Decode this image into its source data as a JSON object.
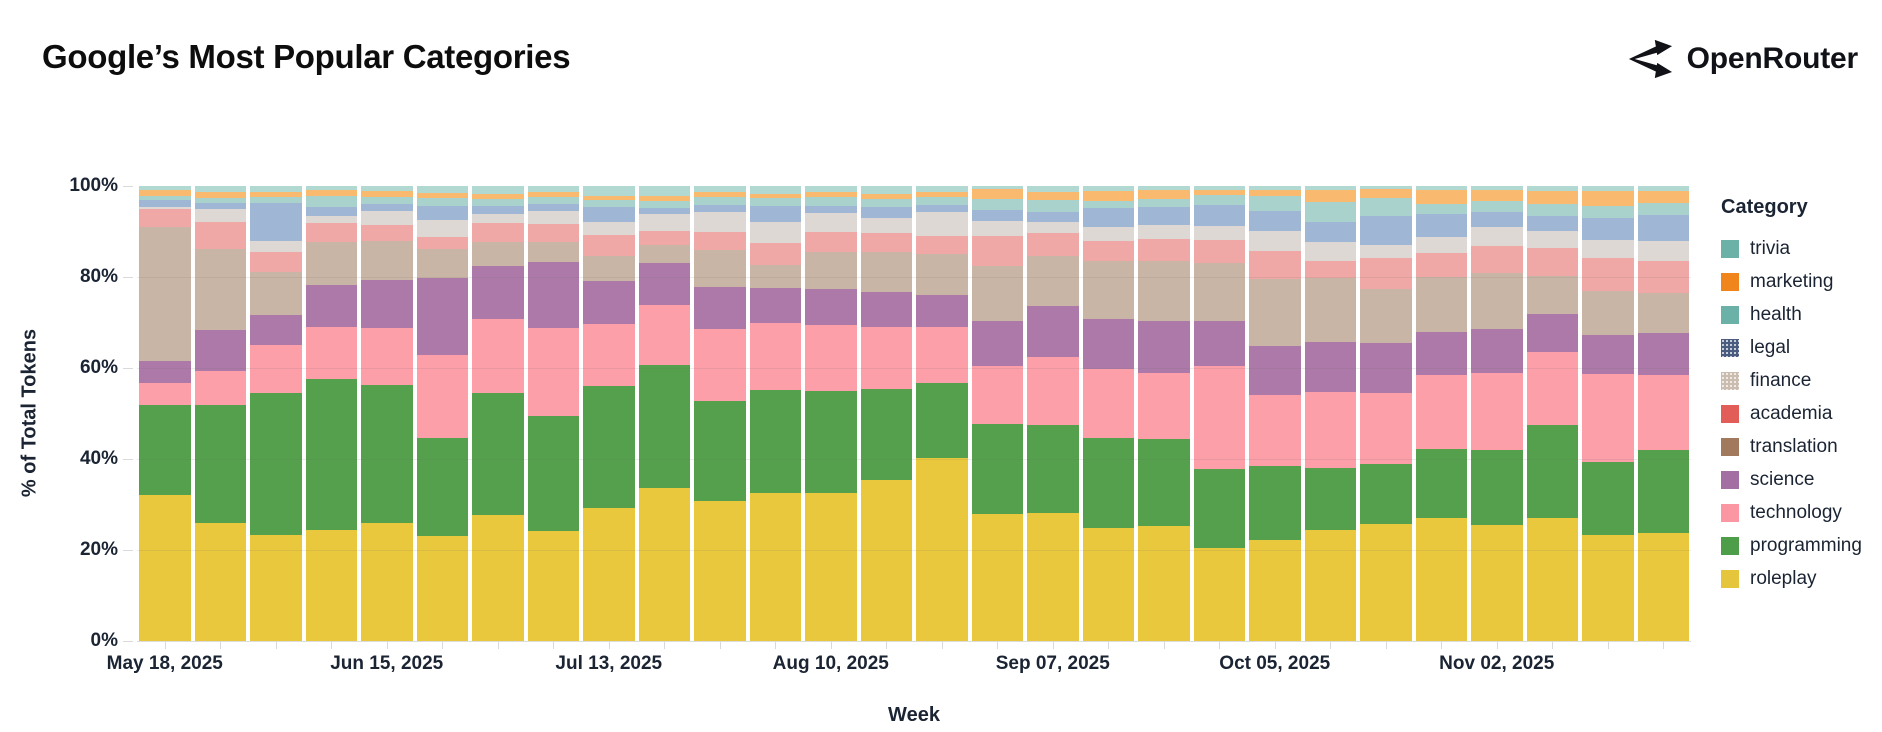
{
  "header": {
    "title": "Google’s Most Popular Categories",
    "logo_text": "OpenRouter"
  },
  "chart": {
    "y_axis": {
      "title": "% of Total Tokens",
      "tick_labels": [
        "0%",
        "20%",
        "40%",
        "60%",
        "80%",
        "100%"
      ]
    },
    "x_axis": {
      "title": "Week",
      "tick_labels": [
        "May 18, 2025",
        "Jun 15, 2025",
        "Jul 13, 2025",
        "Aug 10, 2025",
        "Sep 07, 2025",
        "Oct 05, 2025",
        "Nov 02, 2025"
      ],
      "tick_week_indices": [
        0,
        4,
        8,
        12,
        16,
        20,
        24
      ]
    },
    "legend_title": "Category"
  },
  "colors": {
    "background": "#ffffff",
    "text": "#1b2433",
    "grid": "#d9d9d9"
  },
  "chart_data": {
    "type": "bar",
    "stacked": true,
    "unit": "percent_of_total_tokens",
    "ylim": [
      0,
      100
    ],
    "grid": true,
    "legend_position": "right",
    "title": "Google’s Most Popular Categories",
    "xlabel": "Week",
    "ylabel": "% of Total Tokens",
    "x": [
      "May 18, 2025",
      "May 25, 2025",
      "Jun 01, 2025",
      "Jun 08, 2025",
      "Jun 15, 2025",
      "Jun 22, 2025",
      "Jun 29, 2025",
      "Jul 06, 2025",
      "Jul 13, 2025",
      "Jul 20, 2025",
      "Jul 27, 2025",
      "Aug 03, 2025",
      "Aug 10, 2025",
      "Aug 17, 2025",
      "Aug 24, 2025",
      "Aug 31, 2025",
      "Sep 07, 2025",
      "Sep 14, 2025",
      "Sep 21, 2025",
      "Sep 28, 2025",
      "Oct 05, 2025",
      "Oct 12, 2025",
      "Oct 19, 2025",
      "Oct 26, 2025",
      "Nov 02, 2025",
      "Nov 09, 2025",
      "Nov 16, 2025",
      "Nov 23, 2025"
    ],
    "legend_order_top_to_bottom": [
      "trivia",
      "marketing",
      "health",
      "legal",
      "finance",
      "academia",
      "translation",
      "science",
      "technology",
      "programming",
      "roleplay"
    ],
    "series_bottom_to_top": [
      {
        "name": "roleplay",
        "color": "#e9c83d",
        "legend_color": "#e4c53c",
        "bar_dotted": false,
        "legend_dotted": false,
        "values": [
          32.1,
          25.9,
          23.4,
          24.5,
          26.0,
          23.1,
          27.8,
          24.1,
          29.2,
          33.6,
          30.7,
          32.6,
          32.6,
          35.3,
          40.2,
          28.0,
          28.2,
          24.8,
          25.3,
          20.4,
          22.3,
          24.3,
          25.8,
          27.0,
          25.4,
          27.0,
          23.4,
          23.8
        ]
      },
      {
        "name": "programming",
        "color": "#54a04c",
        "legend_color": "#4d9d49",
        "bar_dotted": false,
        "legend_dotted": false,
        "values": [
          19.8,
          26.0,
          31.0,
          33.1,
          30.3,
          21.5,
          26.8,
          25.3,
          26.8,
          27.1,
          22.0,
          22.5,
          22.3,
          20.0,
          16.6,
          19.6,
          19.3,
          19.8,
          19.0,
          17.3,
          16.1,
          13.7,
          13.0,
          15.3,
          16.5,
          20.4,
          16.0,
          18.1
        ]
      },
      {
        "name": "technology",
        "color": "#fc9fa9",
        "legend_color": "#fb96a3",
        "bar_dotted": false,
        "legend_dotted": false,
        "values": [
          4.9,
          7.5,
          10.6,
          11.4,
          12.5,
          18.3,
          16.1,
          19.3,
          13.7,
          13.2,
          15.8,
          14.7,
          14.5,
          13.7,
          12.2,
          12.9,
          14.9,
          15.1,
          14.7,
          22.7,
          15.7,
          16.8,
          15.8,
          16.1,
          16.9,
          16.1,
          19.2,
          16.6
        ]
      },
      {
        "name": "science",
        "color": "#ad79a9",
        "legend_color": "#a36fa3",
        "bar_dotted": false,
        "legend_dotted": false,
        "values": [
          4.7,
          9.0,
          6.7,
          9.3,
          10.5,
          16.8,
          11.7,
          14.7,
          9.5,
          9.2,
          9.3,
          7.7,
          7.9,
          7.8,
          7.1,
          9.8,
          11.2,
          11.1,
          11.3,
          10.0,
          10.7,
          11.0,
          10.8,
          9.5,
          9.7,
          8.4,
          8.7,
          9.1
        ]
      },
      {
        "name": "translation",
        "color": "#c9b5a5",
        "legend_color": "#a1795d",
        "bar_dotted": false,
        "legend_dotted": false,
        "values": [
          29.4,
          17.8,
          9.5,
          9.4,
          8.6,
          6.4,
          5.4,
          4.2,
          5.5,
          4.0,
          8.1,
          5.1,
          8.1,
          8.8,
          9.0,
          12.2,
          11.1,
          12.8,
          13.2,
          12.7,
          14.7,
          13.9,
          11.9,
          12.2,
          12.3,
          8.4,
          9.7,
          8.8
        ]
      },
      {
        "name": "academia",
        "color": "#efa8a5",
        "legend_color": "#e25c58",
        "bar_dotted": false,
        "legend_dotted": false,
        "values": [
          4.0,
          6.0,
          4.2,
          4.2,
          3.5,
          2.6,
          4.1,
          4.0,
          4.5,
          3.1,
          4.0,
          4.8,
          4.4,
          4.1,
          3.9,
          6.6,
          5.0,
          4.4,
          4.8,
          5.1,
          6.2,
          3.9,
          6.9,
          5.1,
          6.0,
          6.1,
          7.2,
          7.2
        ]
      },
      {
        "name": "finance",
        "color": "#ded8d4",
        "legend_color": "#cbbcb0",
        "bar_dotted": true,
        "legend_dotted": true,
        "values": [
          0.5,
          2.8,
          2.6,
          1.6,
          3.1,
          3.9,
          2.0,
          2.9,
          2.9,
          3.7,
          4.4,
          4.8,
          4.2,
          3.2,
          5.3,
          3.2,
          2.3,
          2.9,
          3.1,
          3.1,
          4.4,
          4.2,
          2.9,
          3.5,
          4.2,
          3.8,
          4.0,
          4.4
        ]
      },
      {
        "name": "legal",
        "color": "#9fb6d4",
        "legend_color": "#4a5d80",
        "bar_dotted": true,
        "legend_dotted": true,
        "values": [
          1.5,
          1.3,
          8.3,
          1.8,
          1.5,
          3.1,
          1.8,
          1.5,
          3.2,
          1.2,
          1.6,
          3.5,
          1.7,
          2.4,
          1.5,
          2.4,
          2.2,
          4.2,
          4.0,
          4.5,
          4.4,
          4.4,
          6.3,
          5.1,
          3.3,
          3.3,
          4.8,
          5.7
        ]
      },
      {
        "name": "health",
        "color": "#a8d2cb",
        "legend_color": "#6cb1a8",
        "bar_dotted": false,
        "legend_dotted": false,
        "values": [
          1.0,
          1.0,
          1.2,
          2.6,
          1.7,
          1.6,
          1.5,
          1.7,
          1.7,
          1.7,
          1.7,
          1.6,
          1.8,
          1.8,
          1.8,
          2.4,
          2.8,
          1.7,
          1.7,
          2.2,
          3.4,
          4.4,
          4.0,
          2.3,
          2.4,
          2.6,
          2.7,
          2.5
        ]
      },
      {
        "name": "marketing",
        "color": "#f9b96e",
        "legend_color": "#f0861b",
        "bar_dotted": false,
        "legend_dotted": false,
        "values": [
          1.2,
          1.3,
          1.3,
          1.3,
          1.2,
          1.2,
          1.1,
          0.9,
          0.9,
          1.0,
          1.1,
          0.9,
          1.3,
          1.1,
          1.2,
          2.2,
          1.8,
          2.2,
          2.0,
          1.2,
          1.2,
          2.6,
          1.9,
          3.1,
          2.5,
          2.8,
          3.3,
          2.8
        ]
      },
      {
        "name": "trivia",
        "color": "#b2d8d2",
        "legend_color": "#6cb1a8",
        "bar_dotted": true,
        "legend_dotted": false,
        "values": [
          0.9,
          1.4,
          1.2,
          0.8,
          1.1,
          1.5,
          1.7,
          1.4,
          2.1,
          2.2,
          1.3,
          1.8,
          1.2,
          1.8,
          1.2,
          0.7,
          1.2,
          1.0,
          0.9,
          0.8,
          0.9,
          0.8,
          0.7,
          0.8,
          0.8,
          1.1,
          1.0,
          1.0
        ]
      }
    ]
  }
}
